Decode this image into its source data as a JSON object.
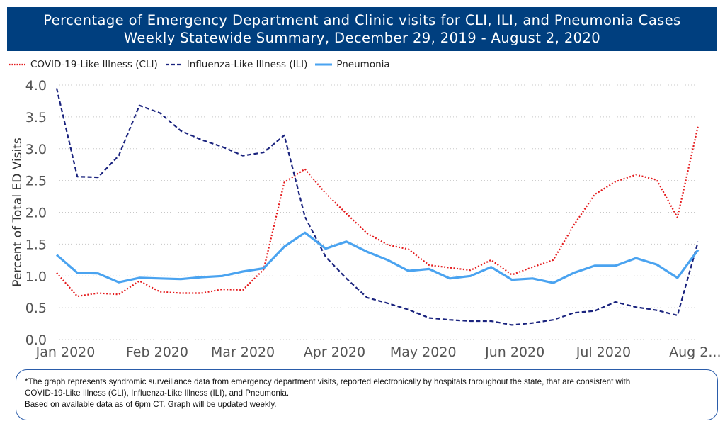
{
  "header": {
    "title_line1": "Percentage of Emergency Department and Clinic visits for CLI, ILI, and Pneumonia Cases",
    "title_line2": "Weekly Statewide Summary, December 29, 2019 - August 2, 2020"
  },
  "chart_data": {
    "type": "line",
    "ylabel": "Percent of Total ED Visits",
    "ylim": [
      0,
      4
    ],
    "yticks": [
      "0.0",
      "0.5",
      "1.0",
      "1.5",
      "2.0",
      "2.5",
      "3.0",
      "3.5",
      "4.0"
    ],
    "xticks": [
      {
        "label": "Jan 2020",
        "date": "2020-01-01"
      },
      {
        "label": "Feb 2020",
        "date": "2020-02-01"
      },
      {
        "label": "Mar 2020",
        "date": "2020-03-01"
      },
      {
        "label": "Apr 2020",
        "date": "2020-04-01"
      },
      {
        "label": "May 2020",
        "date": "2020-05-01"
      },
      {
        "label": "Jun 2020",
        "date": "2020-06-01"
      },
      {
        "label": "Jul 2020",
        "date": "2020-07-01"
      },
      {
        "label": "Aug 2...",
        "date": "2020-08-01"
      }
    ],
    "grid": "horizontal dotted",
    "legend_position": "top-left",
    "x": [
      "2019-12-29",
      "2020-01-05",
      "2020-01-12",
      "2020-01-19",
      "2020-01-26",
      "2020-02-02",
      "2020-02-09",
      "2020-02-16",
      "2020-02-23",
      "2020-03-01",
      "2020-03-08",
      "2020-03-15",
      "2020-03-22",
      "2020-03-29",
      "2020-04-05",
      "2020-04-12",
      "2020-04-19",
      "2020-04-26",
      "2020-05-03",
      "2020-05-10",
      "2020-05-17",
      "2020-05-24",
      "2020-05-31",
      "2020-06-07",
      "2020-06-14",
      "2020-06-21",
      "2020-06-28",
      "2020-07-05",
      "2020-07-12",
      "2020-07-19",
      "2020-07-26",
      "2020-08-02"
    ],
    "series": [
      {
        "name": "COVID-19-Like Illness (CLI)",
        "color": "#e41a1c",
        "style": "dotted",
        "values": [
          1.05,
          0.68,
          0.73,
          0.71,
          0.92,
          0.75,
          0.73,
          0.73,
          0.79,
          0.78,
          1.1,
          2.47,
          2.68,
          2.3,
          1.98,
          1.67,
          1.49,
          1.42,
          1.17,
          1.13,
          1.09,
          1.25,
          1.02,
          1.14,
          1.25,
          1.8,
          2.28,
          2.48,
          2.59,
          2.51,
          1.92,
          3.36
        ]
      },
      {
        "name": "Influenza-Like Illness (ILI)",
        "color": "#1a237e",
        "style": "dashed",
        "values": [
          3.95,
          2.56,
          2.55,
          2.89,
          3.68,
          3.56,
          3.28,
          3.14,
          3.03,
          2.89,
          2.94,
          3.21,
          1.93,
          1.3,
          0.96,
          0.66,
          0.57,
          0.47,
          0.34,
          0.31,
          0.29,
          0.29,
          0.23,
          0.26,
          0.31,
          0.42,
          0.45,
          0.59,
          0.51,
          0.46,
          0.38,
          1.54
        ]
      },
      {
        "name": "Pneumonia",
        "color": "#4aa3f0",
        "style": "solid",
        "values": [
          1.33,
          1.05,
          1.04,
          0.9,
          0.97,
          0.96,
          0.95,
          0.98,
          1.0,
          1.07,
          1.12,
          1.46,
          1.68,
          1.43,
          1.54,
          1.38,
          1.25,
          1.08,
          1.11,
          0.96,
          1.0,
          1.14,
          0.94,
          0.96,
          0.89,
          1.05,
          1.16,
          1.16,
          1.28,
          1.18,
          0.97,
          1.41
        ]
      }
    ]
  },
  "footnote": {
    "line1": "*The graph represents syndromic surveillance data from emergency department visits, reported electronically by hospitals throughout the state, that are consistent with",
    "line2": "COVID-19-Like Illness (CLI), Influenza-Like Illness (ILI), and Pneumonia.",
    "line3": "Based on available data as of 6pm CT.  Graph will be updated weekly."
  }
}
